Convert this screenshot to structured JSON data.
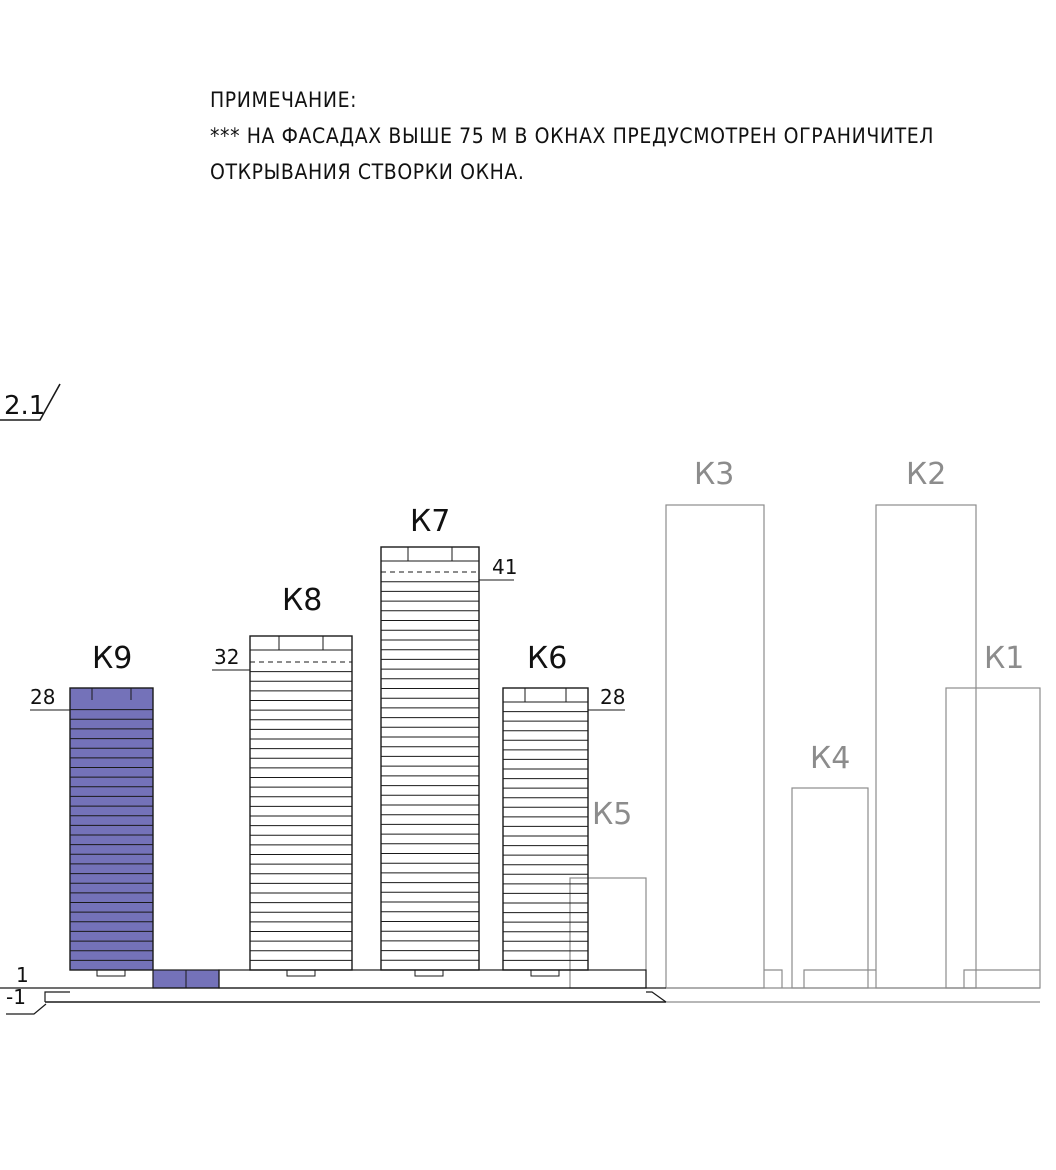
{
  "note": {
    "title": "ПРИМЕЧАНИЕ:",
    "line1": "*** НА ФАСАДАХ ВЫШЕ 75 М В ОКНАХ ПРЕДУСМОТРЕН ОГРАНИЧИТЕЛ",
    "line2": "ОТКРЫВАНИЯ СТВОРКИ ОКНА."
  },
  "section_mark": "2.1",
  "levels": {
    "ground": "1",
    "basement": "-1"
  },
  "colors": {
    "highlight_fill": "#7472b9",
    "line": "#1a1a1a",
    "context_line": "#8c8c8c",
    "context_text": "#8c8c8c"
  },
  "towers": [
    {
      "id": "k9",
      "label": "К9",
      "floors": 28,
      "floor_label": "28",
      "highlighted": true
    },
    {
      "id": "k8",
      "label": "К8",
      "floors": 32,
      "floor_label": "32",
      "highlighted": false
    },
    {
      "id": "k7",
      "label": "К7",
      "floors": 41,
      "floor_label": "41",
      "highlighted": false
    },
    {
      "id": "k6",
      "label": "К6",
      "floors": 28,
      "floor_label": "28",
      "highlighted": false
    }
  ],
  "context_buildings": [
    "К3",
    "К2",
    "К1",
    "К4",
    "К5"
  ]
}
